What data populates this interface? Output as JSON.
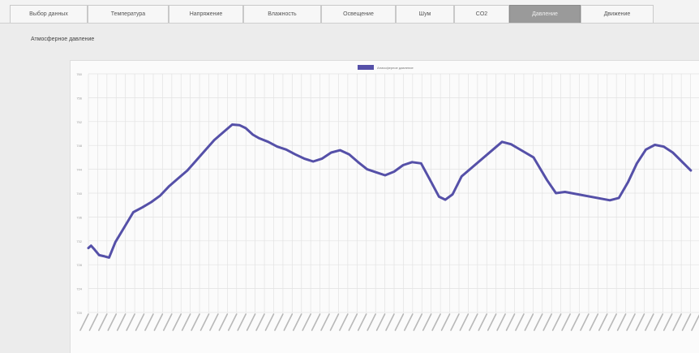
{
  "tabs": [
    {
      "label": "Выбор данных",
      "active": false
    },
    {
      "label": "Температура",
      "active": false
    },
    {
      "label": "Напряжение",
      "active": false
    },
    {
      "label": "Влажность",
      "active": false
    },
    {
      "label": "Освещение",
      "active": false
    },
    {
      "label": "Шум",
      "active": false
    },
    {
      "label": "CO2",
      "active": false
    },
    {
      "label": "Давление",
      "active": true
    },
    {
      "label": "Движение",
      "active": false
    }
  ],
  "section_title": "Атмосферное давление",
  "colors": {
    "series": "#5550a8",
    "grid": "#e2e2e2",
    "active_tab": "#9a9a9a"
  },
  "chart_data": {
    "type": "line",
    "title": "",
    "legend_position": "top-center",
    "grid": true,
    "ylim": [
      720,
      760
    ],
    "yticks": [
      "720",
      "724",
      "728",
      "732",
      "736",
      "740",
      "744",
      "748",
      "752",
      "756",
      "760"
    ],
    "series": [
      {
        "name": "Атмосферное давление",
        "points": [
          [
            0,
            730.8
          ],
          [
            0.3,
            731.2
          ],
          [
            0.7,
            730.5
          ],
          [
            1.2,
            729.6
          ],
          [
            1.8,
            729.4
          ],
          [
            2.3,
            729.2
          ],
          [
            3,
            731.8
          ],
          [
            4,
            734.3
          ],
          [
            5,
            736.8
          ],
          [
            6,
            737.6
          ],
          [
            7,
            738.5
          ],
          [
            8,
            739.6
          ],
          [
            9,
            741.2
          ],
          [
            10,
            742.5
          ],
          [
            11,
            743.8
          ],
          [
            12,
            745.5
          ],
          [
            13,
            747.2
          ],
          [
            14,
            748.9
          ],
          [
            15,
            750.2
          ],
          [
            16,
            751.5
          ],
          [
            16.8,
            751.4
          ],
          [
            17.5,
            750.9
          ],
          [
            18.3,
            749.8
          ],
          [
            19,
            749.2
          ],
          [
            20,
            748.6
          ],
          [
            21,
            747.8
          ],
          [
            22,
            747.3
          ],
          [
            23,
            746.5
          ],
          [
            24,
            745.8
          ],
          [
            25,
            745.3
          ],
          [
            26,
            745.8
          ],
          [
            27,
            746.8
          ],
          [
            28,
            747.2
          ],
          [
            29,
            746.5
          ],
          [
            30,
            745.2
          ],
          [
            31,
            744.0
          ],
          [
            32,
            743.5
          ],
          [
            33,
            743.0
          ],
          [
            34,
            743.6
          ],
          [
            35,
            744.7
          ],
          [
            36,
            745.2
          ],
          [
            37,
            745.0
          ],
          [
            38,
            742.2
          ],
          [
            39,
            739.4
          ],
          [
            39.7,
            738.9
          ],
          [
            40.5,
            739.8
          ],
          [
            41.5,
            742.8
          ],
          [
            46,
            748.6
          ],
          [
            47,
            748.2
          ],
          [
            49.5,
            746.0
          ],
          [
            51,
            742.2
          ],
          [
            52,
            740.0
          ],
          [
            53,
            740.2
          ],
          [
            58,
            738.8
          ],
          [
            59,
            739.2
          ],
          [
            60,
            741.8
          ],
          [
            61,
            745.0
          ],
          [
            62,
            747.3
          ],
          [
            63,
            748.1
          ],
          [
            64,
            747.8
          ],
          [
            65,
            746.8
          ],
          [
            66,
            745.3
          ],
          [
            67,
            743.8
          ]
        ]
      }
    ]
  }
}
